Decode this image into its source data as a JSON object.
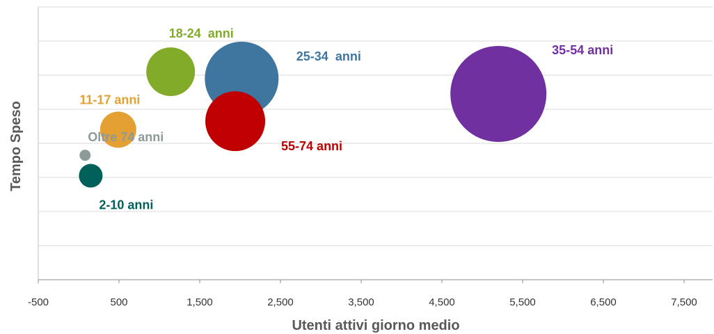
{
  "chart_data": {
    "type": "scatter",
    "subtype": "bubble",
    "xlabel": "Utenti attivi giorno medio",
    "ylabel": "Tempo Speso",
    "xlim": [
      -500,
      7900
    ],
    "x_ticks": [
      -500,
      500,
      1500,
      2500,
      3500,
      4500,
      5500,
      6500,
      7500
    ],
    "x_tick_labels": [
      "-500",
      "500",
      "1,500",
      "2,500",
      "3,500",
      "4,500",
      "5,500",
      "6,500",
      "7,500"
    ],
    "y_tick_labels_shown": false,
    "gridlines": "horizontal",
    "gridline_count": 8,
    "legend": "none",
    "series": [
      {
        "name": "2-10 anni",
        "x": 150,
        "y": 3.05,
        "size": 17,
        "color": "#00605A"
      },
      {
        "name": "Oltre 74 anni",
        "x": 80,
        "y": 3.65,
        "size": 8,
        "color": "#8C9A9A"
      },
      {
        "name": "11-17 anni",
        "x": 490,
        "y": 4.4,
        "size": 26,
        "color": "#E5A033"
      },
      {
        "name": "18-24  anni",
        "x": 1140,
        "y": 6.1,
        "size": 35,
        "color": "#82AB2A"
      },
      {
        "name": "25-34  anni",
        "x": 2020,
        "y": 5.9,
        "size": 53,
        "color": "#3E76A0"
      },
      {
        "name": "55-74 anni",
        "x": 1940,
        "y": 4.65,
        "size": 43,
        "color": "#C00000"
      },
      {
        "name": "35-54 anni",
        "x": 5200,
        "y": 5.45,
        "size": 69,
        "color": "#7030A0"
      }
    ]
  }
}
